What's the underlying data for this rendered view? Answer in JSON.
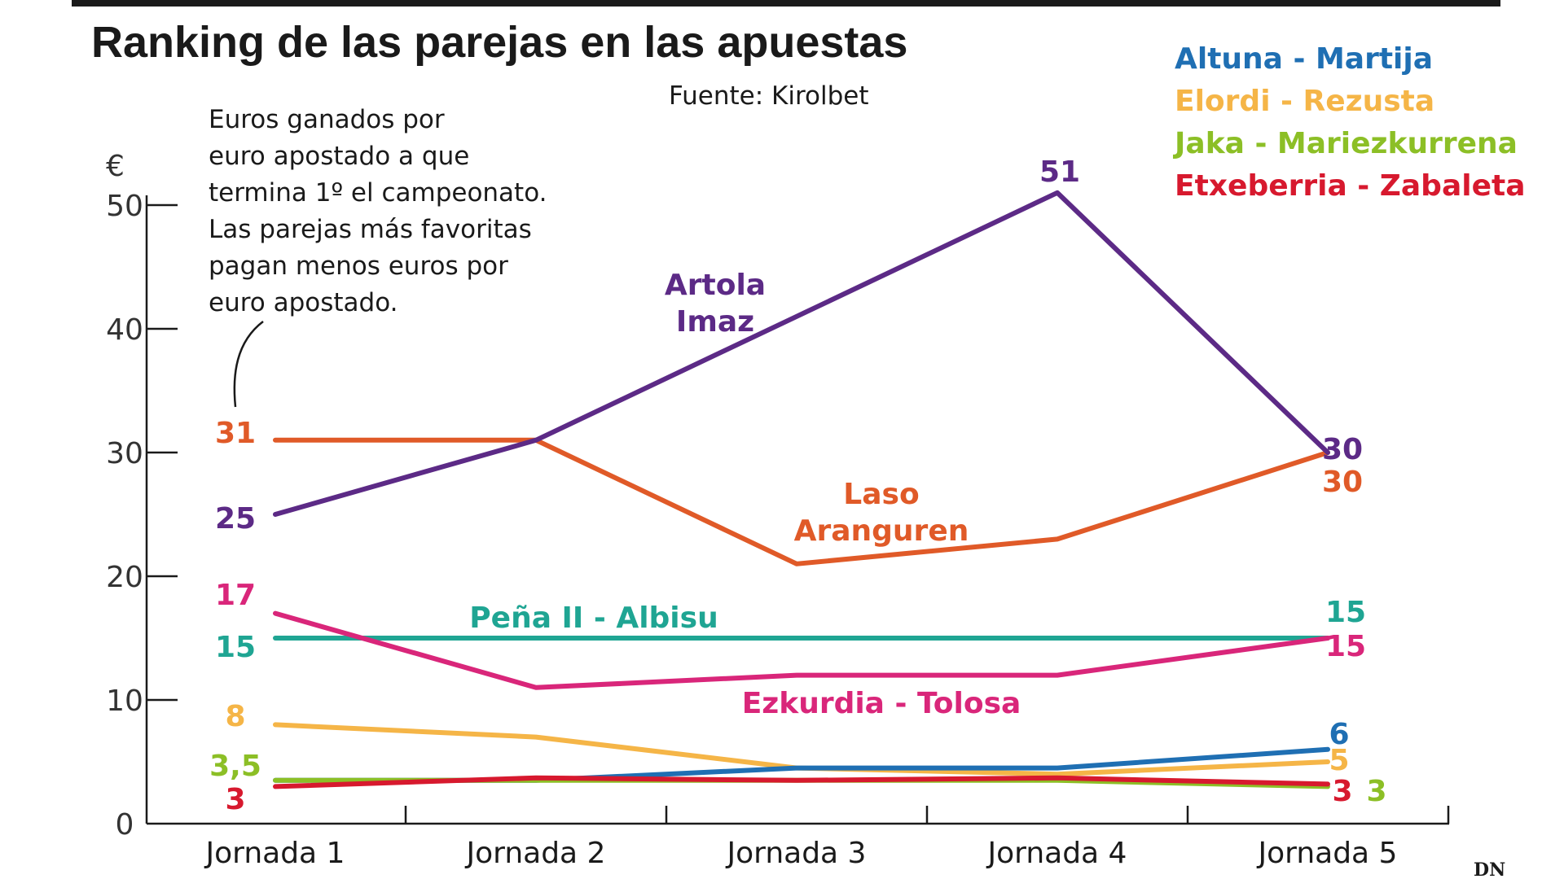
{
  "chart_data": {
    "type": "line",
    "title": "Ranking de las parejas en las apuestas",
    "source": "Fuente: Kirolbet",
    "ylabel": "€",
    "note": [
      "Euros ganados por",
      "euro apostado a que",
      "termina 1º el campeonato.",
      "Las parejas más favoritas",
      "pagan menos euros por",
      "euro apostado."
    ],
    "categories": [
      "Jornada 1",
      "Jornada 2",
      "Jornada 3",
      "Jornada 4",
      "Jornada 5"
    ],
    "ylim": [
      0,
      50
    ],
    "yticks": [
      0,
      10,
      20,
      30,
      40,
      50
    ],
    "logo": "DN",
    "colors": {
      "Artola - Imaz": "#5c2a86",
      "Laso - Aranguren": "#e05a28",
      "Peña II - Albisu": "#1fa593",
      "Ezkurdia - Tolosa": "#d9267a",
      "Altuna - Martija": "#1f6fb3",
      "Elordi - Rezusta": "#f5b547",
      "Jaka - Mariezkurrena": "#8cbf26",
      "Etxeberria - Zabaleta": "#d7192e"
    },
    "series": [
      {
        "name": "Artola - Imaz",
        "label_lines": [
          "Artola",
          "Imaz"
        ],
        "values": [
          25,
          31,
          41,
          51,
          30
        ],
        "start_label": "25",
        "end_label": "30",
        "peak_label": "51"
      },
      {
        "name": "Laso - Aranguren",
        "label_lines": [
          "Laso",
          "Aranguren"
        ],
        "values": [
          31,
          31,
          21,
          23,
          30
        ],
        "start_label": "31",
        "end_label": "30"
      },
      {
        "name": "Peña II - Albisu",
        "label_lines": [
          "Peña II - Albisu"
        ],
        "values": [
          15,
          15,
          15,
          15,
          15
        ],
        "start_label": "15",
        "end_label": "15"
      },
      {
        "name": "Ezkurdia - Tolosa",
        "label_lines": [
          "Ezkurdia - Tolosa"
        ],
        "values": [
          17,
          11,
          12,
          12,
          15
        ],
        "start_label": "17",
        "end_label": "15"
      },
      {
        "name": "Altuna - Martija",
        "values": [
          3.5,
          3.5,
          4.5,
          4.5,
          6
        ],
        "end_label": "6"
      },
      {
        "name": "Elordi - Rezusta",
        "values": [
          8,
          7,
          4.5,
          4,
          5
        ],
        "start_label": "8",
        "end_label": "5"
      },
      {
        "name": "Jaka - Mariezkurrena",
        "values": [
          3.5,
          3.5,
          3.5,
          3.5,
          3
        ],
        "start_label": "3,5",
        "end_label": "3"
      },
      {
        "name": "Etxeberria - Zabaleta",
        "values": [
          3,
          3.7,
          3.5,
          3.7,
          3.2
        ],
        "start_label": "3",
        "end_label": "3"
      }
    ],
    "legend": [
      "Altuna - Martija",
      "Elordi - Rezusta",
      "Jaka - Mariezkurrena",
      "Etxeberria - Zabaleta"
    ]
  }
}
